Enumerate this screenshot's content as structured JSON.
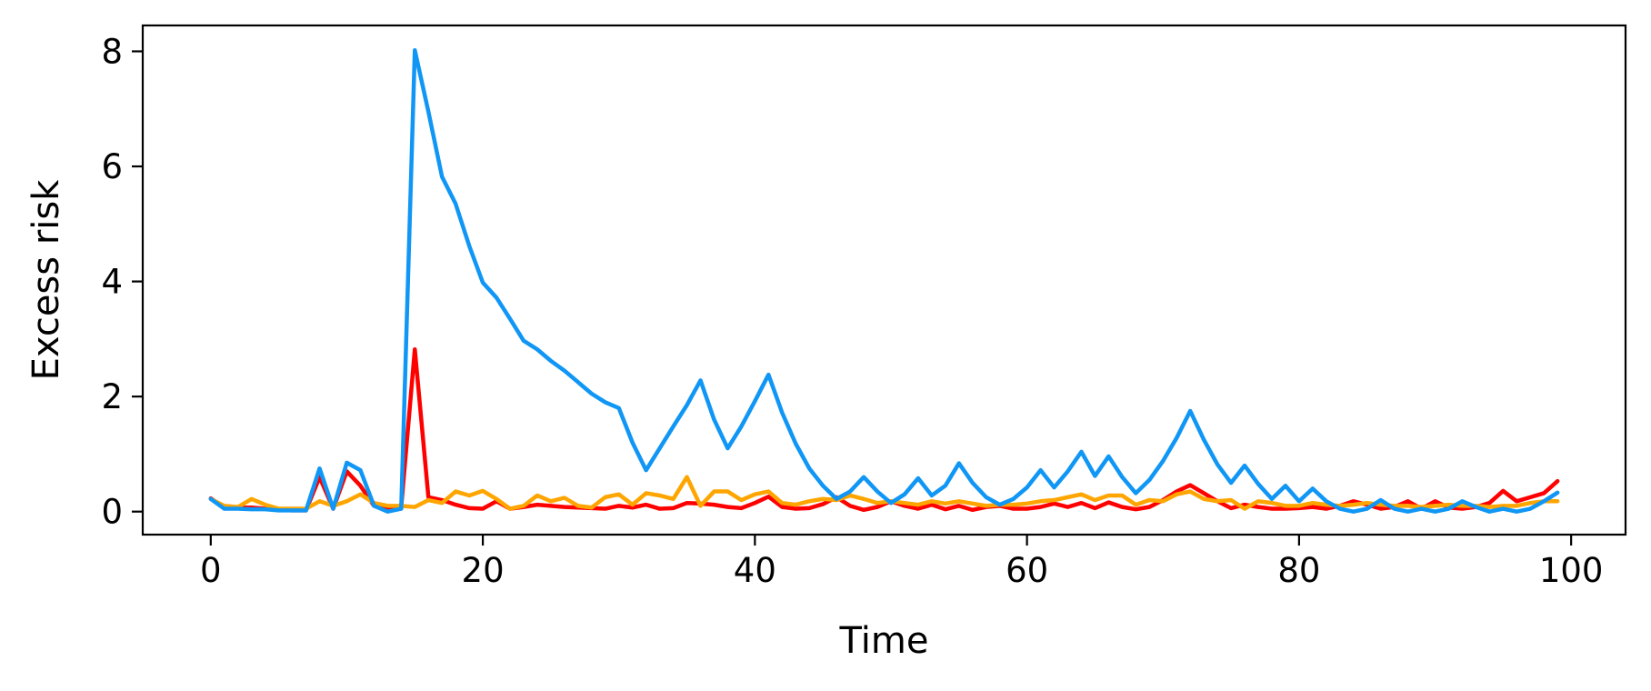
{
  "chart_data": {
    "type": "line",
    "title": "",
    "xlabel": "Time",
    "ylabel": "Excess risk",
    "xlim": [
      -5,
      104
    ],
    "ylim": [
      -0.4,
      8.45
    ],
    "xticks": [
      0,
      20,
      40,
      60,
      80,
      100
    ],
    "yticks": [
      0,
      2,
      4,
      6,
      8
    ],
    "xtick_labels": [
      "0",
      "20",
      "40",
      "60",
      "80",
      "100"
    ],
    "ytick_labels": [
      "0",
      "2",
      "4",
      "6",
      "8"
    ],
    "grid": false,
    "legend": "none",
    "x_start": 0,
    "x_step": 1,
    "series": [
      {
        "color": "#ff0000",
        "values": [
          0.23,
          0.07,
          0.07,
          0.07,
          0.05,
          0.03,
          0.02,
          0.02,
          0.6,
          0.05,
          0.7,
          0.45,
          0.1,
          0.05,
          0.08,
          2.82,
          0.25,
          0.2,
          0.12,
          0.06,
          0.05,
          0.18,
          0.05,
          0.08,
          0.12,
          0.1,
          0.08,
          0.07,
          0.06,
          0.05,
          0.1,
          0.07,
          0.12,
          0.05,
          0.06,
          0.15,
          0.14,
          0.12,
          0.08,
          0.06,
          0.15,
          0.26,
          0.08,
          0.05,
          0.06,
          0.13,
          0.25,
          0.1,
          0.03,
          0.08,
          0.18,
          0.1,
          0.05,
          0.12,
          0.04,
          0.1,
          0.03,
          0.08,
          0.1,
          0.05,
          0.05,
          0.08,
          0.14,
          0.08,
          0.15,
          0.06,
          0.16,
          0.08,
          0.04,
          0.08,
          0.2,
          0.35,
          0.46,
          0.32,
          0.18,
          0.06,
          0.12,
          0.08,
          0.05,
          0.05,
          0.06,
          0.08,
          0.05,
          0.1,
          0.18,
          0.12,
          0.05,
          0.08,
          0.18,
          0.05,
          0.18,
          0.07,
          0.05,
          0.08,
          0.15,
          0.36,
          0.18,
          0.25,
          0.32,
          0.53
        ]
      },
      {
        "color": "#ffa500",
        "values": [
          0.22,
          0.1,
          0.08,
          0.22,
          0.12,
          0.05,
          0.05,
          0.05,
          0.18,
          0.1,
          0.18,
          0.3,
          0.15,
          0.1,
          0.1,
          0.08,
          0.2,
          0.15,
          0.35,
          0.28,
          0.36,
          0.22,
          0.05,
          0.1,
          0.28,
          0.18,
          0.24,
          0.1,
          0.07,
          0.25,
          0.3,
          0.12,
          0.32,
          0.28,
          0.22,
          0.6,
          0.1,
          0.35,
          0.35,
          0.2,
          0.3,
          0.35,
          0.15,
          0.12,
          0.18,
          0.22,
          0.2,
          0.28,
          0.22,
          0.15,
          0.18,
          0.15,
          0.12,
          0.18,
          0.14,
          0.18,
          0.14,
          0.1,
          0.12,
          0.12,
          0.14,
          0.18,
          0.2,
          0.25,
          0.3,
          0.2,
          0.28,
          0.28,
          0.12,
          0.2,
          0.18,
          0.3,
          0.35,
          0.22,
          0.18,
          0.2,
          0.05,
          0.18,
          0.15,
          0.1,
          0.1,
          0.15,
          0.12,
          0.1,
          0.12,
          0.15,
          0.12,
          0.1,
          0.1,
          0.08,
          0.1,
          0.12,
          0.1,
          0.1,
          0.08,
          0.1,
          0.1,
          0.15,
          0.18,
          0.18
        ]
      },
      {
        "color": "#1096f5",
        "values": [
          0.22,
          0.05,
          0.05,
          0.04,
          0.04,
          0.02,
          0.02,
          0.02,
          0.75,
          0.05,
          0.85,
          0.72,
          0.1,
          0.0,
          0.05,
          8.02,
          6.95,
          5.82,
          5.35,
          4.62,
          3.98,
          3.72,
          3.35,
          2.97,
          2.82,
          2.62,
          2.45,
          2.25,
          2.05,
          1.9,
          1.8,
          1.2,
          0.72,
          1.1,
          1.48,
          1.85,
          2.28,
          1.6,
          1.1,
          1.48,
          1.92,
          2.38,
          1.72,
          1.18,
          0.75,
          0.45,
          0.22,
          0.35,
          0.6,
          0.35,
          0.15,
          0.3,
          0.58,
          0.28,
          0.45,
          0.84,
          0.5,
          0.25,
          0.12,
          0.22,
          0.42,
          0.72,
          0.42,
          0.7,
          1.04,
          0.62,
          0.96,
          0.6,
          0.32,
          0.55,
          0.88,
          1.28,
          1.75,
          1.25,
          0.82,
          0.5,
          0.8,
          0.48,
          0.22,
          0.45,
          0.18,
          0.4,
          0.18,
          0.05,
          0.0,
          0.05,
          0.2,
          0.05,
          0.0,
          0.05,
          0.0,
          0.05,
          0.18,
          0.08,
          0.0,
          0.05,
          0.0,
          0.05,
          0.18,
          0.33
        ]
      }
    ]
  }
}
